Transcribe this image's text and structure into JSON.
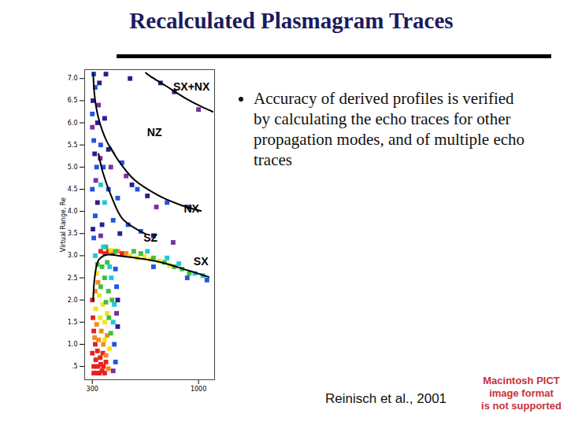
{
  "chart_data": {
    "type": "scatter",
    "title": "Recalculated Plasmagram Traces",
    "ylabel": "Virtual Range, Re",
    "log": "x",
    "grid": false,
    "xlim": [
      275,
      1200
    ],
    "xticks": [
      300,
      1000
    ],
    "ylim": [
      0.2,
      7.2
    ],
    "yticks": [
      {
        "value": 0.5,
        "label": ".5"
      },
      {
        "value": 1,
        "label": "1.0"
      },
      1.5,
      {
        "value": 2,
        "label": "2.0"
      },
      2.5,
      {
        "value": 3,
        "label": "3.0"
      },
      3.5,
      {
        "value": 4,
        "label": "4.0"
      },
      4.5,
      {
        "value": 5,
        "label": "5.0"
      },
      5.5,
      {
        "value": 6,
        "label": "6.0"
      },
      6.5,
      {
        "value": 7,
        "label": "7.0"
      }
    ],
    "series": [
      {
        "type": "scatter",
        "marker": "square",
        "color": "#e8211f",
        "x": [
          305,
          315,
          325,
          335,
          345,
          305,
          320,
          330,
          340,
          312,
          328,
          350,
          300,
          318,
          338,
          310,
          305,
          300,
          345,
          360,
          380,
          330,
          420,
          302
        ],
        "values": [
          0.35,
          0.35,
          0.35,
          0.4,
          0.35,
          0.5,
          0.5,
          0.55,
          0.5,
          0.65,
          0.7,
          0.6,
          0.8,
          0.85,
          0.8,
          1.0,
          1.3,
          2.0,
          3.05,
          3.1,
          3.08,
          3.1,
          3.05,
          1.6
        ]
      },
      {
        "type": "scatter",
        "marker": "square",
        "color": "#f58a1f",
        "x": [
          350,
          360,
          322,
          340,
          308,
          332,
          315,
          355,
          320,
          400,
          440,
          310
        ],
        "values": [
          0.75,
          0.45,
          1.1,
          1.0,
          1.15,
          1.3,
          1.45,
          1.2,
          2.4,
          3.1,
          3.05,
          2.2
        ]
      },
      {
        "type": "scatter",
        "marker": "square",
        "color": "#f4e31c",
        "x": [
          345,
          365,
          328,
          345,
          312,
          338,
          355,
          325,
          315,
          460,
          500,
          370,
          540,
          640,
          720,
          580
        ],
        "values": [
          1.1,
          0.9,
          1.6,
          1.5,
          1.8,
          1.9,
          1.7,
          2.1,
          2.6,
          3.0,
          2.95,
          3.12,
          2.98,
          2.88,
          2.78,
          2.92
        ]
      },
      {
        "type": "scatter",
        "marker": "square",
        "color": "#3fbf3f",
        "x": [
          370,
          350,
          362,
          330,
          345,
          360,
          318,
          335,
          355,
          375,
          390,
          480,
          520,
          600,
          680,
          760,
          830,
          900,
          350
        ],
        "values": [
          1.25,
          1.95,
          1.6,
          2.3,
          2.5,
          2.2,
          2.8,
          2.75,
          2.85,
          2.0,
          3.1,
          3.1,
          3.05,
          2.95,
          2.85,
          2.75,
          2.7,
          2.6,
          3.2
        ]
      },
      {
        "type": "scatter",
        "marker": "square",
        "color": "#21c6d8",
        "x": [
          380,
          372,
          385,
          365,
          340,
          310,
          560,
          700,
          800,
          960,
          1050,
          330,
          345
        ],
        "values": [
          1.5,
          2.5,
          1.9,
          2.75,
          3.2,
          3.0,
          3.1,
          2.95,
          2.82,
          2.6,
          2.55,
          4.6,
          4.2
        ]
      },
      {
        "type": "scatter",
        "marker": "square",
        "color": "#2155e0",
        "x": [
          390,
          385,
          395,
          390,
          305,
          310,
          300,
          315,
          305,
          300,
          310,
          305,
          330,
          340,
          360,
          400,
          380,
          450,
          520,
          600,
          880,
          1100,
          420,
          500,
          700
        ],
        "values": [
          0.6,
          1.0,
          2.3,
          2.7,
          3.4,
          3.9,
          4.5,
          5.0,
          5.6,
          6.2,
          6.8,
          7.1,
          5.5,
          5.0,
          4.5,
          4.3,
          3.8,
          3.7,
          3.55,
          2.75,
          2.5,
          2.45,
          5.1,
          4.5,
          4.2
        ]
      },
      {
        "type": "scatter",
        "marker": "square",
        "color": "#2a1f8f",
        "x": [
          400,
          400,
          302,
          318,
          308,
          302,
          318,
          325,
          345,
          360,
          335,
          410,
          470,
          560,
          600,
          650,
          760,
          460,
          350
        ],
        "values": [
          1.4,
          2.0,
          3.6,
          4.2,
          5.3,
          6.5,
          6.0,
          6.9,
          6.1,
          5.4,
          3.7,
          3.5,
          4.6,
          4.35,
          3.45,
          6.9,
          6.7,
          7.0,
          7.1
        ]
      },
      {
        "type": "scatter",
        "marker": "square",
        "color": "#7a2fa0",
        "x": [
          395,
          380,
          312,
          328,
          300,
          322,
          370,
          440,
          620,
          750,
          900,
          1000,
          330
        ],
        "values": [
          1.7,
          0.4,
          4.7,
          5.2,
          5.9,
          6.4,
          5.0,
          4.8,
          4.1,
          3.3,
          4.1,
          6.3,
          3.45
        ]
      },
      {
        "type": "line",
        "line_style": "solid",
        "color": "#000000",
        "x": [
          550,
          575,
          687,
          859,
          1028,
          1175
        ],
        "values": [
          7.13,
          7.06,
          6.84,
          6.56,
          6.37,
          6.25
        ]
      },
      {
        "type": "line",
        "line_style": "solid",
        "color": "#000000",
        "x": [
          303,
          308,
          322,
          352,
          385
        ],
        "values": [
          7.13,
          6.6,
          6.1,
          5.6,
          5.3
        ]
      },
      {
        "type": "line",
        "line_style": "solid",
        "color": "#000000",
        "x": [
          368,
          403,
          481,
          629,
          822,
          1028
        ],
        "values": [
          5.45,
          5.15,
          4.72,
          4.37,
          4.14,
          4.01
        ]
      },
      {
        "type": "line",
        "line_style": "solid",
        "color": "#000000",
        "x": [
          322,
          337,
          368,
          421,
          503,
          550
        ],
        "values": [
          5.3,
          4.9,
          4.4,
          3.84,
          3.58,
          3.49
        ]
      },
      {
        "type": "line",
        "line_style": "solid",
        "color": "#000000",
        "x": [
          303,
          308,
          322,
          352,
          403,
          629,
          899,
          1122
        ],
        "values": [
          1.99,
          2.5,
          2.9,
          3.02,
          3.0,
          2.87,
          2.66,
          2.52
        ]
      }
    ],
    "annotations": [
      {
        "text": "SX+NX",
        "x": 923,
        "y": 6.81
      },
      {
        "text": "NZ",
        "x": 607,
        "y": 5.77
      },
      {
        "text": "NX",
        "x": 923,
        "y": 4.05
      },
      {
        "text": "SZ",
        "x": 580,
        "y": 3.4
      },
      {
        "text": "SX",
        "x": 1028,
        "y": 2.87
      }
    ]
  },
  "slide": {
    "bullets": [
      "Accuracy of derived profiles is verified by calculating the echo traces for other propagation modes, and of multiple echo traces"
    ],
    "citation": "Reinisch et al., 2001",
    "notice": [
      "Macintosh PICT",
      "image format",
      "is not supported"
    ]
  }
}
